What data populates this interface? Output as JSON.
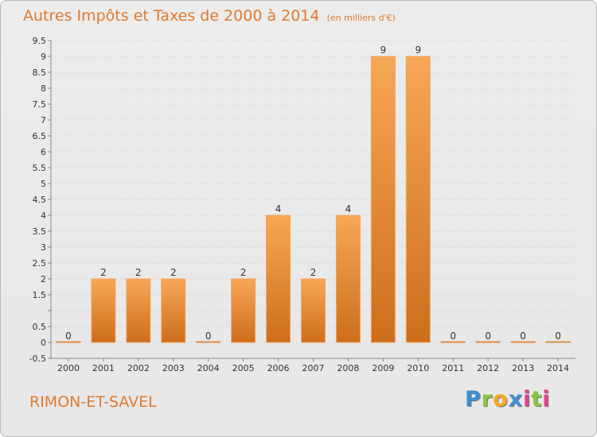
{
  "title": "Autres Impôts et Taxes de 2000 à 2014",
  "unit_note": "(en milliers d'€)",
  "commune": "RIMON-ET-SAVEL",
  "logo": {
    "text": "Proxiti",
    "letters": [
      "P",
      "r",
      "o",
      "x",
      "i",
      "t",
      "i"
    ],
    "colors": [
      "#3a8fd6",
      "#8cc63f",
      "#f7a823",
      "#3a8fd6",
      "#e2418d",
      "#8cc63f",
      "#e2418d"
    ]
  },
  "colors": {
    "accent": "#e07a2e",
    "bar_top": "#f7a757",
    "bar_bottom": "#cd6e1c",
    "grid": "#c8c8c8",
    "axis": "#8a8a8a",
    "tick_text": "#333333"
  },
  "chart_data": {
    "type": "bar",
    "title": "Autres Impôts et Taxes de 2000 à 2014",
    "subtitle": "(en milliers d'€)",
    "categories": [
      "2000",
      "2001",
      "2002",
      "2003",
      "2004",
      "2005",
      "2006",
      "2007",
      "2008",
      "2009",
      "2010",
      "2011",
      "2012",
      "2013",
      "2014"
    ],
    "values": [
      0,
      2,
      2,
      2,
      0,
      2,
      4,
      2,
      4,
      9,
      9,
      0,
      0,
      0,
      0
    ],
    "data_labels": [
      "0",
      "2",
      "2",
      "2",
      "0",
      "2",
      "4",
      "2",
      "4",
      "9",
      "9",
      "0",
      "0",
      "0",
      "0"
    ],
    "ylim": [
      -0.5,
      9.5
    ],
    "yticks": [
      -0.5,
      0,
      0.5,
      1,
      1.5,
      2,
      2.5,
      3,
      3.5,
      4,
      4.5,
      5,
      5.5,
      6,
      6.5,
      7,
      7.5,
      8,
      8.5,
      9,
      9.5
    ],
    "ytick_labels": [
      "-0.5",
      "0",
      "0.5",
      "",
      "1.5",
      "2",
      "2.5",
      "3",
      "3.5",
      "4",
      "4.5",
      "5",
      "5.5",
      "6",
      "6.5",
      "7",
      "7.5",
      "8",
      "8.5",
      "9",
      "9.5"
    ],
    "grid": true,
    "grid_style": "dotted horizontal",
    "legend": "none"
  }
}
